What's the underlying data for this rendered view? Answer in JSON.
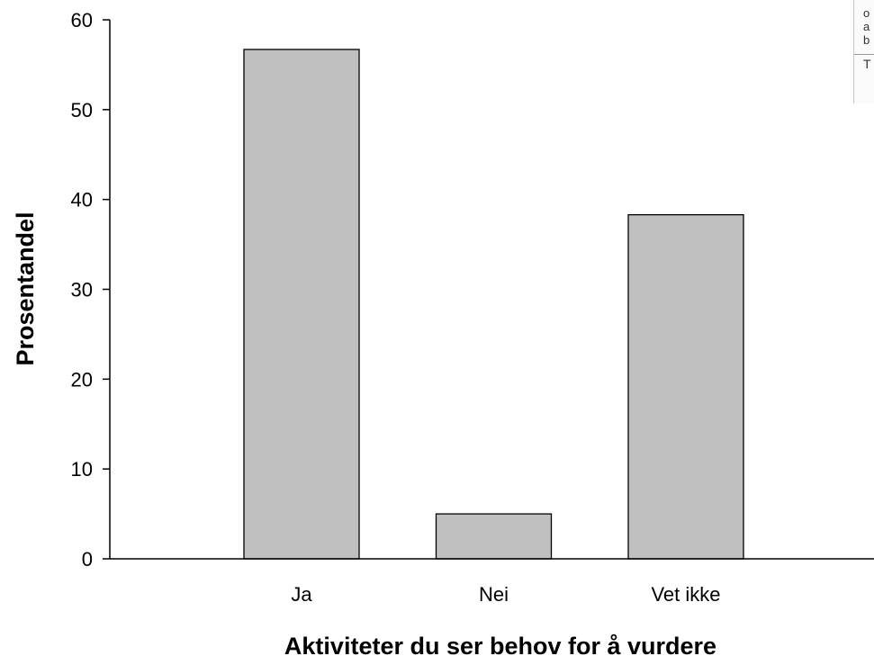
{
  "chart_data": {
    "type": "bar",
    "categories": [
      "Ja",
      "Nei",
      "Vet ikke"
    ],
    "values": [
      56.7,
      5.0,
      38.3
    ],
    "xlabel": "Aktiviteter du ser behov for å vurdere",
    "ylabel": "Prosentandel",
    "ylim": [
      0,
      60
    ],
    "yticks": [
      0,
      10,
      20,
      30,
      40,
      50,
      60
    ],
    "grid": false,
    "legend": "none",
    "bar_color": "#c0c0c0",
    "bar_edge_color": "#000000"
  },
  "side_panel": {
    "lines": [
      "o",
      "a",
      "b"
    ],
    "footer": "T"
  }
}
